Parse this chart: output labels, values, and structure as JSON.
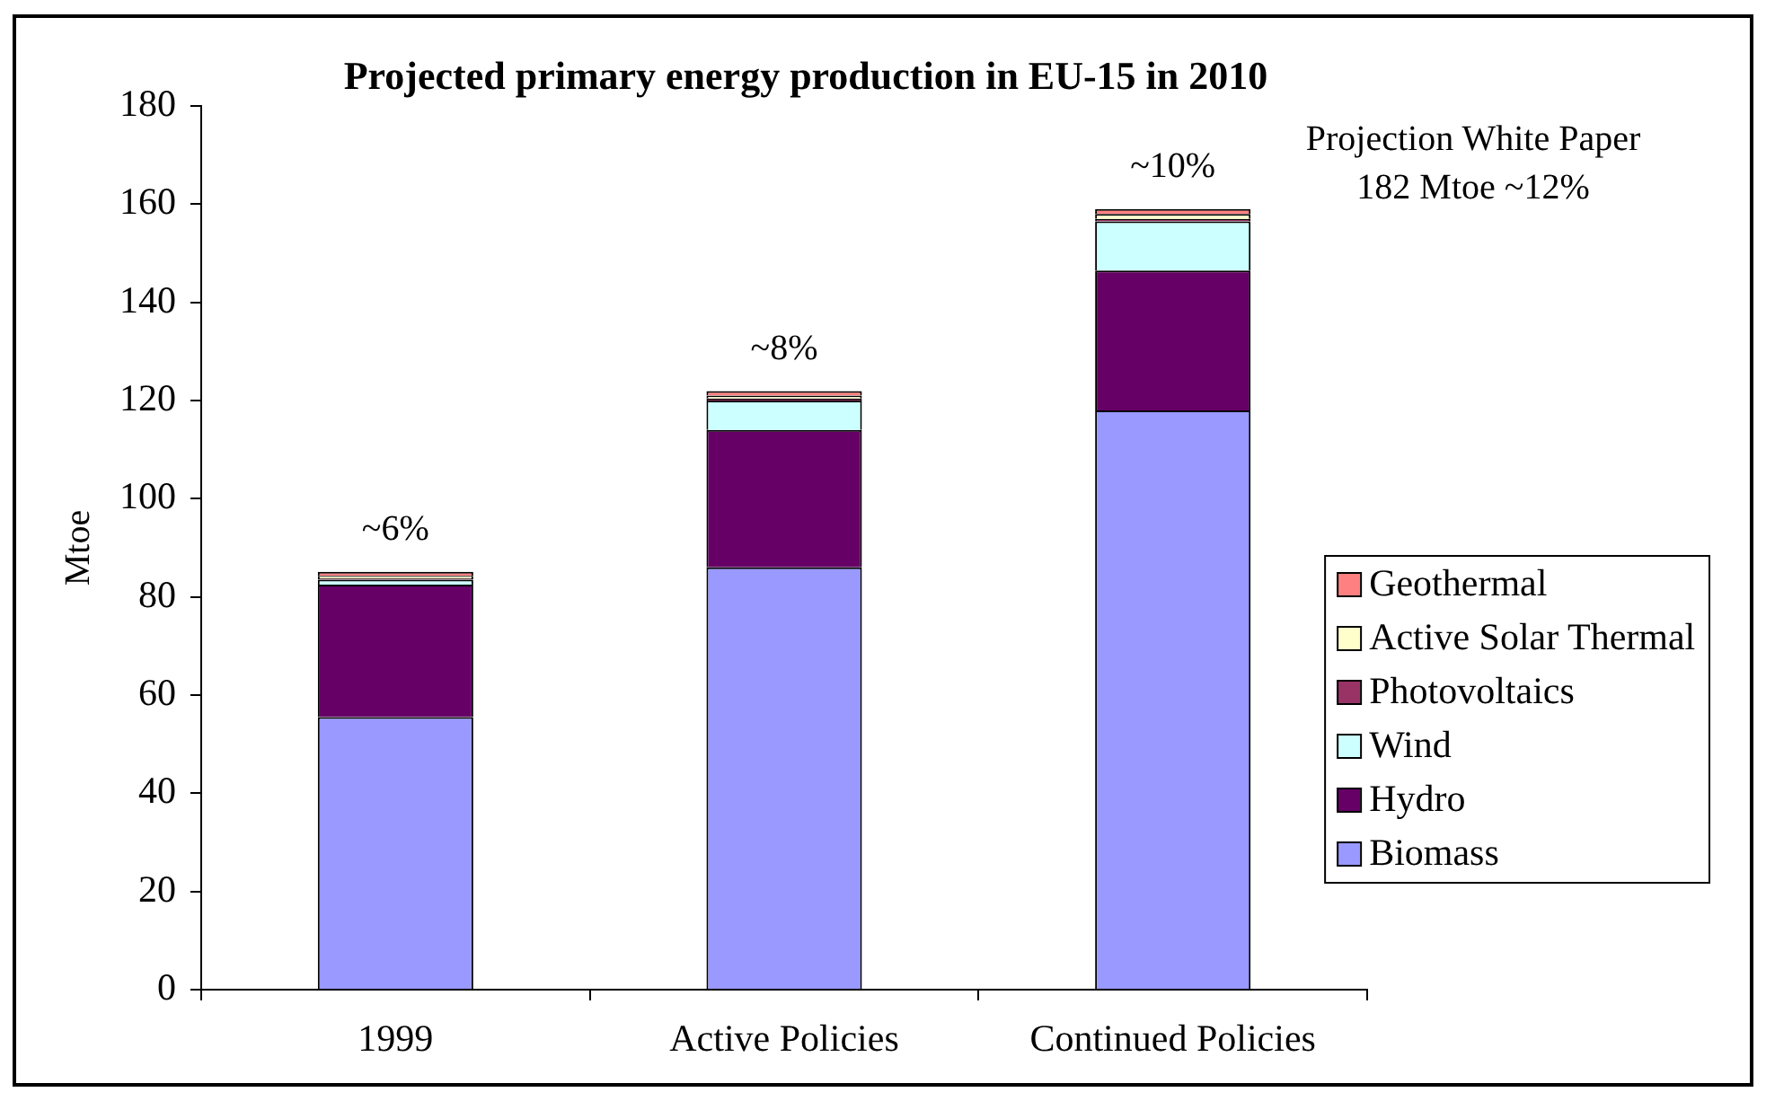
{
  "chart_data": {
    "type": "bar",
    "title": "Projected primary energy production in EU-15 in 2010",
    "ylabel": "Mtoe",
    "categories": [
      "1999",
      "Active Policies",
      "Continued Policies"
    ],
    "series": [
      {
        "name": "Biomass",
        "color": "#9999ff",
        "values": [
          55.5,
          86,
          118
        ]
      },
      {
        "name": "Hydro",
        "color": "#660066",
        "values": [
          27,
          28,
          28.5
        ]
      },
      {
        "name": "Wind",
        "color": "#ccffff",
        "values": [
          1,
          6,
          10
        ]
      },
      {
        "name": "Photovoltaics",
        "color": "#993366",
        "values": [
          0.3,
          0.4,
          0.5
        ]
      },
      {
        "name": "Active Solar Thermal",
        "color": "#ffffcc",
        "values": [
          0.5,
          0.6,
          1
        ]
      },
      {
        "name": "Geothermal",
        "color": "#ff8080",
        "values": [
          0.8,
          0.9,
          1
        ]
      }
    ],
    "stacked": true,
    "ylim": [
      0,
      180
    ],
    "yticks": [
      0,
      20,
      40,
      60,
      80,
      100,
      120,
      140,
      160,
      180
    ],
    "grid": false,
    "legend": "right",
    "annotations": [
      "~6%",
      "~8%",
      "~10%",
      "Projection White Paper 182 Mtoe ~12%"
    ]
  }
}
